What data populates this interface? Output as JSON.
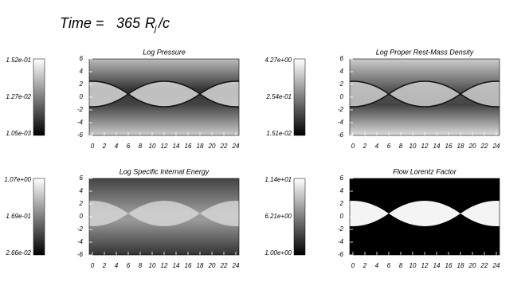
{
  "header": {
    "prefix": "Time =",
    "time": 365,
    "unit": "R",
    "unit_subscript": "j",
    "unit_suffix": "/c"
  },
  "panels": [
    {
      "title": "Log Pressure",
      "colorbar_labels": [
        "1.52e-01",
        "1.27e-02",
        "1.05e-03"
      ],
      "yticks": [
        6,
        4,
        2,
        0,
        -2,
        -4,
        -6
      ],
      "xticks": [
        0,
        2,
        4,
        6,
        8,
        10,
        12,
        14,
        16,
        18,
        20,
        22,
        24
      ]
    },
    {
      "title": "Log Proper Rest-Mass Density",
      "colorbar_labels": [
        "4.27e+00",
        "2.54e-01",
        "1.51e-02"
      ],
      "yticks": [
        6,
        4,
        2,
        0,
        -2,
        -4,
        -6
      ],
      "xticks": [
        0,
        2,
        4,
        6,
        8,
        10,
        12,
        14,
        16,
        18,
        20,
        22,
        24
      ]
    },
    {
      "title": "Log Specific Internal Energy",
      "colorbar_labels": [
        "1.07e+00",
        "1.69e-01",
        "2.66e-02"
      ],
      "yticks": [
        6,
        4,
        2,
        0,
        -2,
        -4,
        -6
      ],
      "xticks": [
        0,
        2,
        4,
        6,
        8,
        10,
        12,
        14,
        16,
        18,
        20,
        22,
        24
      ]
    },
    {
      "title": "Flow Lorentz Factor",
      "colorbar_labels": [
        "1.14e+01",
        "6.21e+00",
        "1.00e+00"
      ],
      "yticks": [
        6,
        4,
        2,
        0,
        -2,
        -4,
        -6
      ],
      "xticks": [
        0,
        2,
        4,
        6,
        8,
        10,
        12,
        14,
        16,
        18,
        20,
        22,
        24
      ]
    }
  ]
}
